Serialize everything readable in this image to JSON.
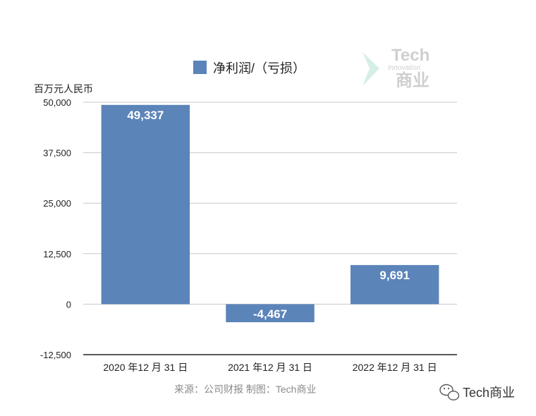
{
  "chart_data": {
    "type": "bar",
    "title": "净利润/（亏损）",
    "legend": [
      "净利润/（亏损）"
    ],
    "ylabel": "百万元人民币",
    "xlabel": "",
    "categories": [
      "2020 年12 月 31 日",
      "2021 年12 月 31 日",
      "2022 年12 月 31 日"
    ],
    "values": [
      49337,
      -4467,
      9691
    ],
    "value_labels": [
      "49,337",
      "-4,467",
      "9,691"
    ],
    "ylim": [
      -12500,
      50000
    ],
    "yticks": [
      50000,
      37500,
      25000,
      12500,
      0,
      -12500
    ],
    "ytick_labels": [
      "50,000",
      "37,500",
      "25,000",
      "12,500",
      "0",
      "-12,500"
    ],
    "grid": true,
    "legend_position": "top-center",
    "bar_color": "#5b84b9"
  },
  "source_note": "来源：公司财报 制图：Tech商业",
  "watermark": {
    "top": "Tech",
    "middle": "Innovation",
    "bottom": "商业"
  },
  "brand": "Tech商业"
}
